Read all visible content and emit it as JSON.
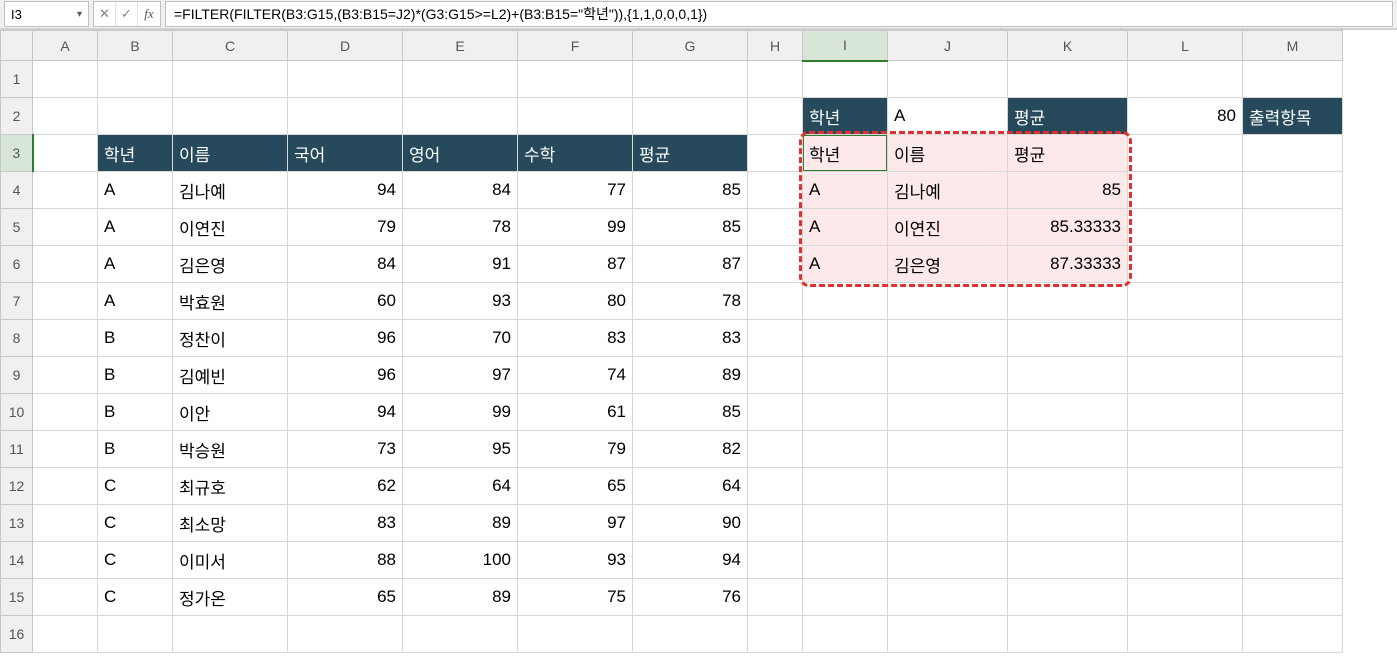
{
  "nameBox": "I3",
  "formula": "=FILTER(FILTER(B3:G15,(B3:B15=J2)*(G3:G15>=L2)+(B3:B15=\"학년\")),{1,1,0,0,0,1})",
  "columns": [
    "A",
    "B",
    "C",
    "D",
    "E",
    "F",
    "G",
    "H",
    "I",
    "J",
    "K",
    "L",
    "M"
  ],
  "rowNums": [
    "1",
    "2",
    "3",
    "4",
    "5",
    "6",
    "7",
    "8",
    "9",
    "10",
    "11",
    "12",
    "13",
    "14",
    "15",
    "16"
  ],
  "leftHeader": [
    "학년",
    "이름",
    "국어",
    "영어",
    "수학",
    "평균"
  ],
  "leftRows": [
    [
      "A",
      "김나예",
      94,
      84,
      77,
      85
    ],
    [
      "A",
      "이연진",
      79,
      78,
      99,
      85
    ],
    [
      "A",
      "김은영",
      84,
      91,
      87,
      87
    ],
    [
      "A",
      "박효원",
      60,
      93,
      80,
      78
    ],
    [
      "B",
      "정찬이",
      96,
      70,
      83,
      83
    ],
    [
      "B",
      "김예빈",
      96,
      97,
      74,
      89
    ],
    [
      "B",
      "이안",
      94,
      99,
      61,
      85
    ],
    [
      "B",
      "박승원",
      73,
      95,
      79,
      82
    ],
    [
      "C",
      "최규호",
      62,
      64,
      65,
      64
    ],
    [
      "C",
      "최소망",
      83,
      89,
      97,
      90
    ],
    [
      "C",
      "이미서",
      88,
      100,
      93,
      94
    ],
    [
      "C",
      "정가온",
      65,
      89,
      75,
      76
    ]
  ],
  "filterLabels": {
    "grade": "학년",
    "gradeVal": "A",
    "avg": "평균",
    "avgVal": 80,
    "out": "출력항목"
  },
  "rightHeader": [
    "학년",
    "이름",
    "평균"
  ],
  "rightRows": [
    [
      "A",
      "김나예",
      85
    ],
    [
      "A",
      "이연진",
      "85.33333"
    ],
    [
      "A",
      "김은영",
      "87.33333"
    ]
  ],
  "icons": {
    "cancel": "✕",
    "confirm": "✓",
    "dropdown": "▾"
  }
}
